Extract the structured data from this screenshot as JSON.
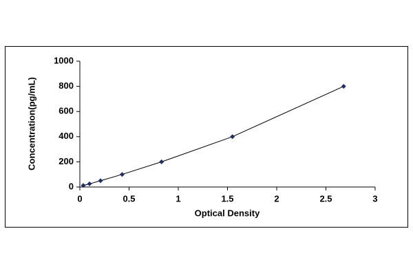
{
  "chart_data": {
    "type": "line",
    "xlabel": "Optical Density",
    "ylabel": "Concentration(pg/mL)",
    "x": [
      0.035,
      0.098,
      0.21,
      0.43,
      0.83,
      1.55,
      2.68
    ],
    "values": [
      12.5,
      25,
      50,
      100,
      200,
      400,
      800
    ],
    "color": "#1f2d6b",
    "line_color": "#000000",
    "xlim": [
      0,
      3
    ],
    "xticks": [
      0,
      0.5,
      1,
      1.5,
      2,
      2.5,
      3
    ],
    "ylim": [
      0,
      1000
    ],
    "yticks": [
      0,
      200,
      400,
      600,
      800,
      1000
    ],
    "grid": false
  }
}
